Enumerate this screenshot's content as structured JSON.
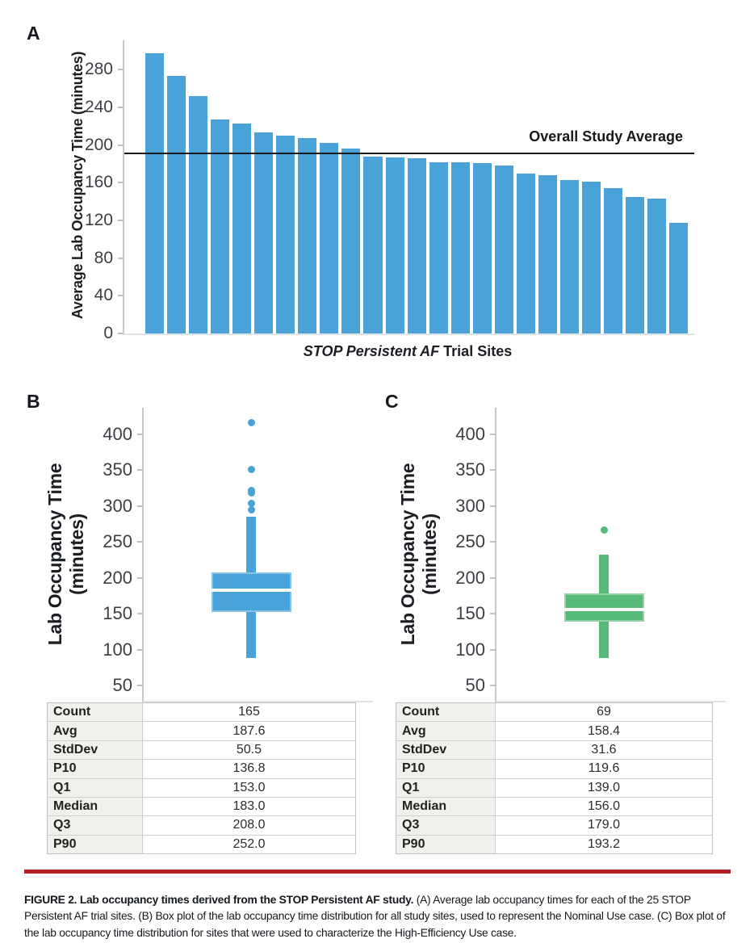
{
  "colors": {
    "bar_blue": "#49a3d8",
    "box_green": "#57ba79",
    "average_line": "#17191b",
    "caption_rule_red": "#b32025",
    "axis_line": "#c3c9ce"
  },
  "chart_data": [
    {
      "id": "A",
      "panel_label": "A",
      "type": "bar",
      "ylabel": "Average Lab Occupancy Time (minutes)",
      "xlabel_italic": "STOP Persistent AF",
      "xlabel_rest": "Trial Sites",
      "yticks": [
        0,
        40,
        80,
        120,
        160,
        200,
        240,
        280
      ],
      "ylim": [
        0,
        311
      ],
      "values": [
        297,
        273,
        252,
        227,
        223,
        213,
        210,
        207,
        202,
        196,
        188,
        187,
        186,
        182,
        182,
        181,
        178,
        170,
        168,
        163,
        161,
        154,
        145,
        143,
        117
      ],
      "color": "#49a3d8",
      "annotation": {
        "label": "Overall Study Average",
        "value": 192
      },
      "legend": "none",
      "grid": false
    },
    {
      "id": "B",
      "panel_label": "B",
      "type": "box",
      "ylabel_line1": "Lab Occupancy Time",
      "ylabel_line2": "(minutes)",
      "yticks": [
        400,
        350,
        300,
        250,
        200,
        150,
        100,
        50
      ],
      "ylim": [
        29,
        437
      ],
      "color": "#49a3d8",
      "box": {
        "q1": 153,
        "median": 183,
        "q3": 208,
        "whisker_low": 89,
        "whisker_high": 285,
        "outliers": [
          295,
          304,
          318,
          322,
          351,
          416
        ]
      },
      "stats_table": [
        [
          "Count",
          "165"
        ],
        [
          "Avg",
          "187.6"
        ],
        [
          "StdDev",
          "50.5"
        ],
        [
          "P10",
          "136.8"
        ],
        [
          "Q1",
          "153.0"
        ],
        [
          "Median",
          "183.0"
        ],
        [
          "Q3",
          "208.0"
        ],
        [
          "P90",
          "252.0"
        ]
      ]
    },
    {
      "id": "C",
      "panel_label": "C",
      "type": "box",
      "ylabel_line1": "Lab Occupancy Time",
      "ylabel_line2": "(minutes)",
      "yticks": [
        400,
        350,
        300,
        250,
        200,
        150,
        100,
        50
      ],
      "ylim": [
        29,
        437
      ],
      "color": "#57ba79",
      "box": {
        "q1": 139,
        "median": 156,
        "q3": 179,
        "whisker_low": 89,
        "whisker_high": 232,
        "outliers": [
          267
        ]
      },
      "stats_table": [
        [
          "Count",
          "69"
        ],
        [
          "Avg",
          "158.4"
        ],
        [
          "StdDev",
          "31.6"
        ],
        [
          "P10",
          "119.6"
        ],
        [
          "Q1",
          "139.0"
        ],
        [
          "Median",
          "156.0"
        ],
        [
          "Q3",
          "179.0"
        ],
        [
          "P90",
          "193.2"
        ]
      ]
    }
  ],
  "caption": {
    "figure_label": "FIGURE 2.",
    "bold_text": "Lab occupancy times derived from the STOP Persistent AF study.",
    "body": "(A) Average lab occupancy times for each of the 25 STOP Persistent AF trial sites. (B) Box plot of the lab occupancy time distribution for all study sites, used to represent the Nominal Use case. (C) Box plot of the lab occupancy time distribution for sites that were used to characterize the High-Efficiency Use case."
  }
}
